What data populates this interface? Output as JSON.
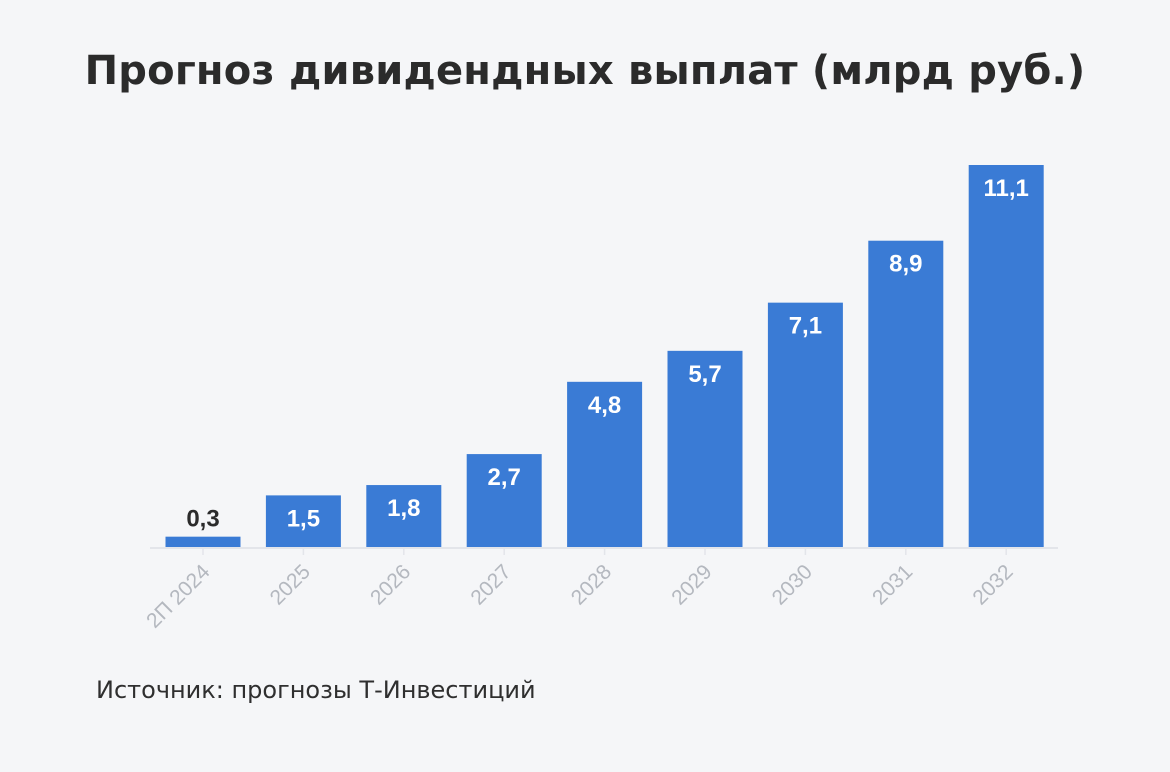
{
  "chart_data": {
    "type": "bar",
    "title": "Прогноз дивидендных выплат (млрд руб.)",
    "categories": [
      "2П 2024",
      "2025",
      "2026",
      "2027",
      "2028",
      "2029",
      "2030",
      "2031",
      "2032"
    ],
    "values": [
      0.3,
      1.5,
      1.8,
      2.7,
      4.8,
      5.7,
      7.1,
      8.9,
      11.1
    ],
    "value_labels": [
      "0,3",
      "1,5",
      "1,8",
      "2,7",
      "4,8",
      "5,7",
      "7,1",
      "8,9",
      "11,1"
    ],
    "xlabel": "",
    "ylabel": "",
    "ylim": [
      0,
      11.1
    ],
    "grid": false,
    "legend": "none",
    "bar_color": "#3a7bd5",
    "data_label_inside_color": "#ffffff",
    "data_label_outside_color": "#2b2b2b",
    "tick_label_color": "#b4b8bf",
    "baseline_color": "#e3e5ea"
  },
  "footer": {
    "source": "Источник: прогнозы Т-Инвестиций"
  }
}
